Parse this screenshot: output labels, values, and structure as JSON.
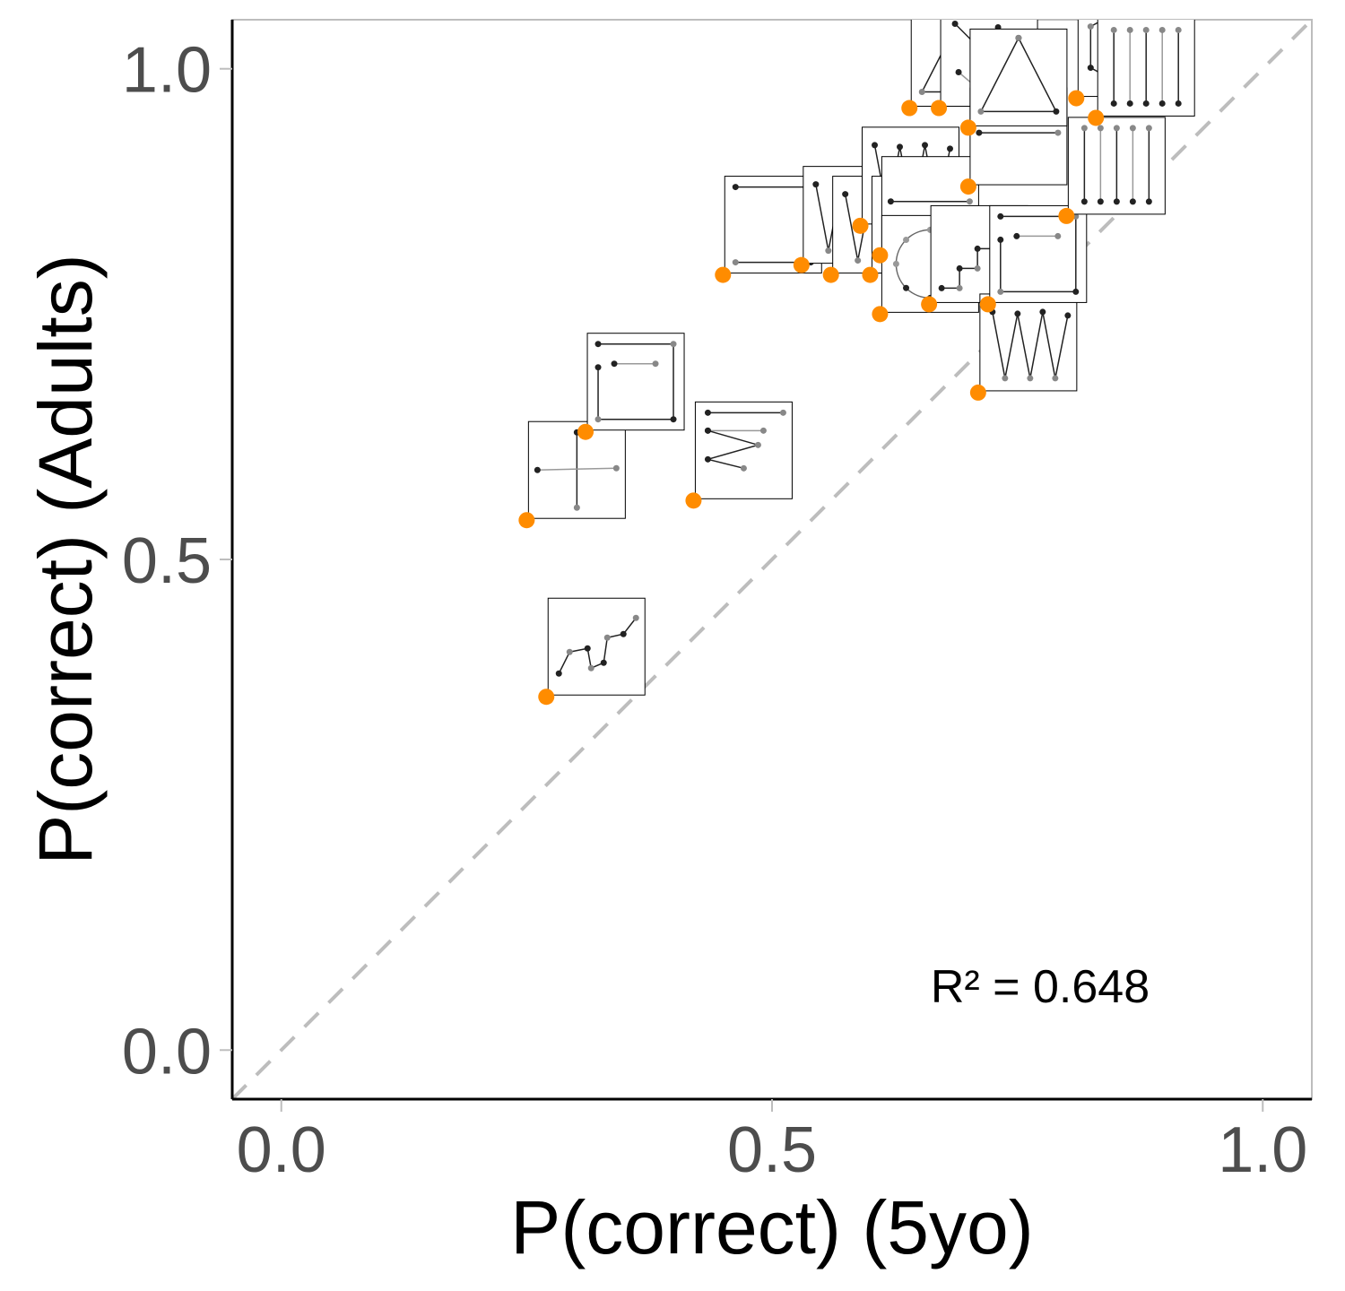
{
  "chart_data": {
    "type": "scatter",
    "xlabel": "P(correct)  (5yo)",
    "ylabel": "P(correct)  (Adults)",
    "xlim": [
      -0.05,
      1.05
    ],
    "ylim": [
      -0.05,
      1.05
    ],
    "x_ticks": [
      0.0,
      0.5,
      1.0
    ],
    "y_ticks": [
      0.0,
      0.5,
      1.0
    ],
    "x_tick_labels": [
      "0.0",
      "0.5",
      "1.0"
    ],
    "y_tick_labels": [
      "0.0",
      "0.5",
      "1.0"
    ],
    "grid": false,
    "reference_line": "y = x",
    "annotation": "R² = 0.648",
    "point_color": "#ff8c00",
    "points": [
      {
        "x": 0.27,
        "y": 0.36,
        "glyph": "zigzag-steps"
      },
      {
        "x": 0.25,
        "y": 0.54,
        "glyph": "cross"
      },
      {
        "x": 0.31,
        "y": 0.63,
        "glyph": "square-spiral"
      },
      {
        "x": 0.42,
        "y": 0.56,
        "glyph": "rows-zigzag"
      },
      {
        "x": 0.45,
        "y": 0.79,
        "glyph": "square"
      },
      {
        "x": 0.53,
        "y": 0.8,
        "glyph": "zigzag"
      },
      {
        "x": 0.56,
        "y": 0.79,
        "glyph": "zigzag"
      },
      {
        "x": 0.59,
        "y": 0.84,
        "glyph": "zigzag"
      },
      {
        "x": 0.6,
        "y": 0.79,
        "glyph": "zigzag"
      },
      {
        "x": 0.61,
        "y": 0.81,
        "glyph": "line"
      },
      {
        "x": 0.61,
        "y": 0.75,
        "glyph": "circle"
      },
      {
        "x": 0.64,
        "y": 0.96,
        "glyph": "triangle"
      },
      {
        "x": 0.66,
        "y": 0.76,
        "glyph": "staircase"
      },
      {
        "x": 0.67,
        "y": 0.96,
        "glyph": "dots"
      },
      {
        "x": 0.7,
        "y": 0.88,
        "glyph": "line"
      },
      {
        "x": 0.7,
        "y": 0.94,
        "glyph": "triangle"
      },
      {
        "x": 0.71,
        "y": 0.67,
        "glyph": "zigzag"
      },
      {
        "x": 0.72,
        "y": 0.76,
        "glyph": "square-spiral"
      },
      {
        "x": 0.8,
        "y": 0.85,
        "glyph": "comb"
      },
      {
        "x": 0.81,
        "y": 0.97,
        "glyph": "hexagon"
      },
      {
        "x": 0.83,
        "y": 0.95,
        "glyph": "comb"
      }
    ]
  }
}
